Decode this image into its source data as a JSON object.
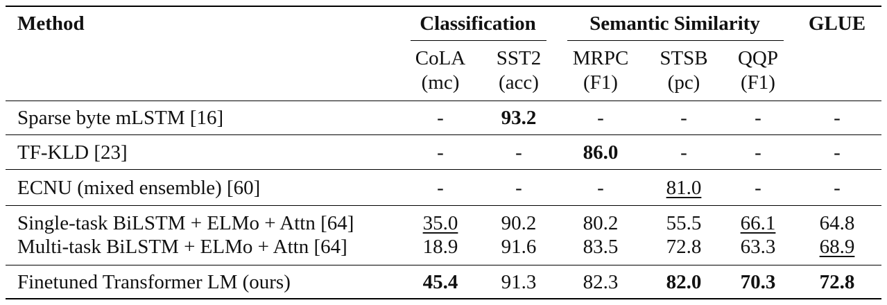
{
  "table": {
    "header": {
      "method": "Method",
      "groups": {
        "classification": "Classification",
        "semantic_similarity": "Semantic Similarity",
        "glue": "GLUE"
      },
      "columns": [
        {
          "name": "CoLA",
          "metric": "(mc)"
        },
        {
          "name": "SST2",
          "metric": "(acc)"
        },
        {
          "name": "MRPC",
          "metric": "(F1)"
        },
        {
          "name": "STSB",
          "metric": "(pc)"
        },
        {
          "name": "QQP",
          "metric": "(F1)"
        }
      ]
    },
    "rows": [
      {
        "method": "Sparse byte mLSTM [16]",
        "values": [
          {
            "v": "-"
          },
          {
            "v": "93.2",
            "bold": true
          },
          {
            "v": "-"
          },
          {
            "v": "-"
          },
          {
            "v": "-"
          },
          {
            "v": "-"
          }
        ]
      },
      {
        "method": "TF-KLD [23]",
        "values": [
          {
            "v": "-"
          },
          {
            "v": "-"
          },
          {
            "v": "86.0",
            "bold": true
          },
          {
            "v": "-"
          },
          {
            "v": "-"
          },
          {
            "v": "-"
          }
        ]
      },
      {
        "method": "ECNU (mixed ensemble) [60]",
        "values": [
          {
            "v": "-"
          },
          {
            "v": "-"
          },
          {
            "v": "-"
          },
          {
            "v": "81.0",
            "underline": true
          },
          {
            "v": "-"
          },
          {
            "v": "-"
          }
        ]
      },
      {
        "method": "Single-task BiLSTM + ELMo + Attn [64]",
        "values": [
          {
            "v": "35.0",
            "underline": true
          },
          {
            "v": "90.2"
          },
          {
            "v": "80.2"
          },
          {
            "v": "55.5"
          },
          {
            "v": "66.1",
            "underline": true
          },
          {
            "v": "64.8"
          }
        ]
      },
      {
        "method": "Multi-task BiLSTM + ELMo + Attn [64]",
        "values": [
          {
            "v": "18.9"
          },
          {
            "v": "91.6"
          },
          {
            "v": "83.5"
          },
          {
            "v": "72.8"
          },
          {
            "v": "63.3"
          },
          {
            "v": "68.9",
            "underline": true
          }
        ]
      },
      {
        "method": "Finetuned Transformer LM (ours)",
        "values": [
          {
            "v": "45.4",
            "bold": true
          },
          {
            "v": "91.3"
          },
          {
            "v": "82.3"
          },
          {
            "v": "82.0",
            "bold": true
          },
          {
            "v": "70.3",
            "bold": true
          },
          {
            "v": "72.8",
            "bold": true
          }
        ]
      }
    ]
  }
}
